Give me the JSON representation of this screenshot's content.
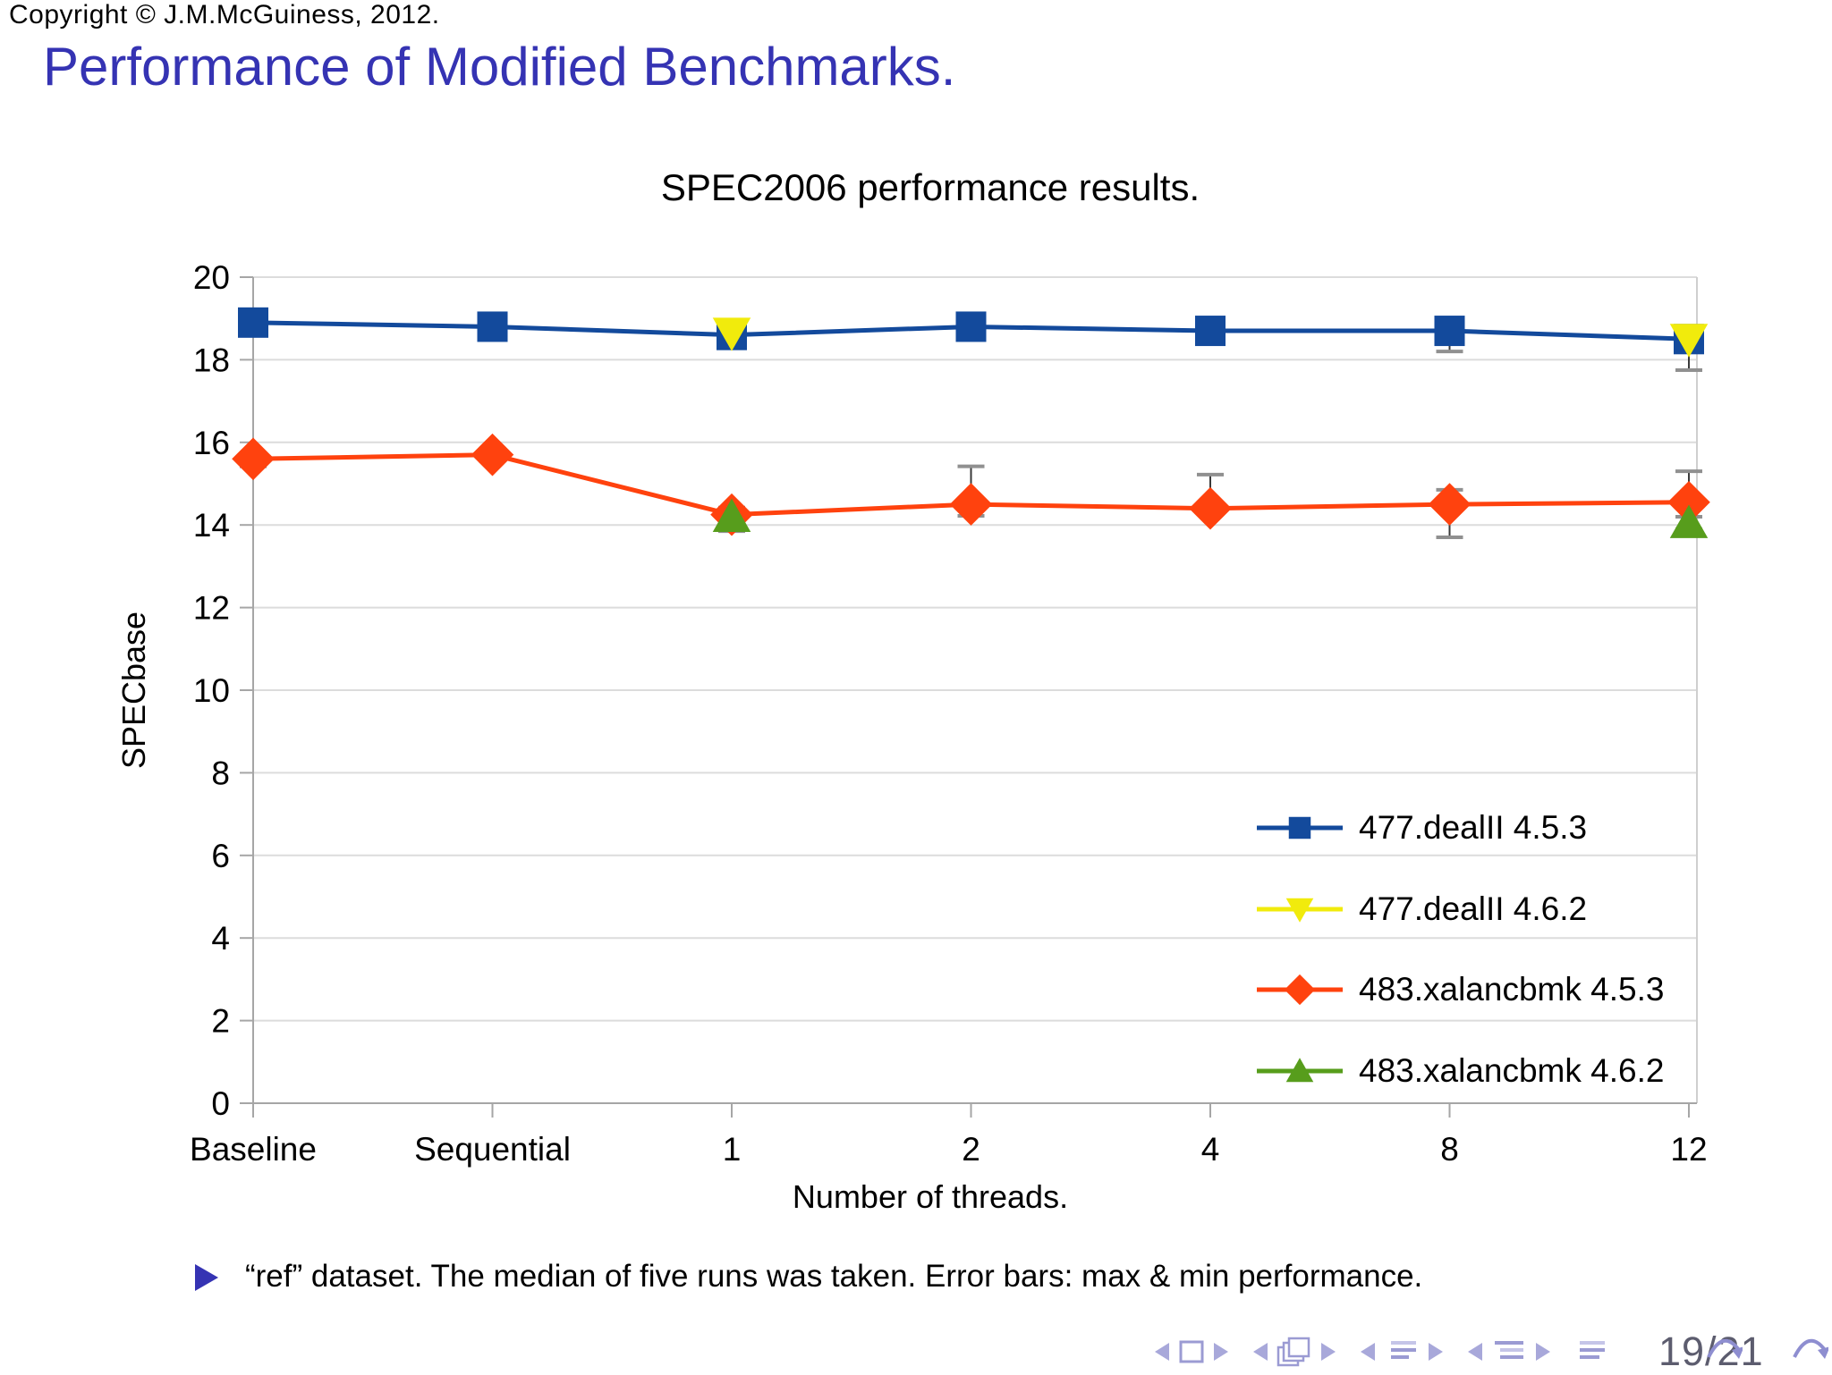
{
  "slide": {
    "copyright": "Copyright © J.M.McGuiness, 2012.",
    "title": "Performance of Modified Benchmarks.",
    "note": "“ref” dataset. The median of five runs was taken. Error bars: max & min performance.",
    "accent_color": "#3533b3"
  },
  "chart_data": {
    "type": "line",
    "title": "SPEC2006 performance results.",
    "xlabel": "Number of threads.",
    "ylabel": "SPECbase",
    "categories": [
      "Baseline",
      "Sequential",
      "1",
      "2",
      "4",
      "8",
      "12"
    ],
    "ylim": [
      0,
      20
    ],
    "ytick_step": 2,
    "grid": true,
    "legend_position": "right-middle-inside",
    "series": [
      {
        "name": "477.dealII 4.5.3",
        "color": "#134a9c",
        "marker": "square",
        "line": true,
        "values": [
          18.9,
          18.8,
          18.6,
          18.8,
          18.7,
          18.7,
          18.5
        ],
        "err_low": [
          18.78,
          18.68,
          18.35,
          18.62,
          18.55,
          18.2,
          17.75
        ],
        "err_high": [
          19.02,
          18.9,
          18.72,
          18.9,
          18.8,
          18.78,
          18.62
        ]
      },
      {
        "name": "477.dealII 4.6.2",
        "color": "#f1eb0c",
        "marker": "triangle-down",
        "line": false,
        "values": [
          null,
          null,
          18.65,
          null,
          null,
          null,
          18.5
        ],
        "err_low": [
          null,
          null,
          null,
          null,
          null,
          null,
          null
        ],
        "err_high": [
          null,
          null,
          null,
          null,
          null,
          null,
          null
        ]
      },
      {
        "name": "483.xalancbmk 4.5.3",
        "color": "#ff420e",
        "marker": "diamond",
        "line": true,
        "values": [
          15.6,
          15.7,
          14.25,
          14.5,
          14.4,
          14.5,
          14.55
        ],
        "err_low": [
          15.42,
          15.55,
          13.95,
          14.22,
          14.3,
          13.7,
          14.2
        ],
        "err_high": [
          15.72,
          15.85,
          14.42,
          15.42,
          15.22,
          14.85,
          15.3
        ]
      },
      {
        "name": "483.xalancbmk 4.6.2",
        "color": "#579d1c",
        "marker": "triangle-up",
        "line": false,
        "values": [
          null,
          null,
          14.2,
          null,
          null,
          null,
          14.05
        ],
        "err_low": [
          null,
          null,
          13.85,
          null,
          null,
          null,
          13.9
        ],
        "err_high": [
          null,
          null,
          14.4,
          null,
          null,
          null,
          14.2
        ]
      }
    ],
    "style": {
      "gridline_color": "#dcdcdc",
      "axis_color": "#a6a6a6",
      "plot_border_color": "#cfcfcf",
      "error_line_color": "#3a3a3a",
      "error_cap_color": "#909090"
    }
  },
  "footer": {
    "page_indicator": "19/21",
    "nav_color": "#a0a0d8",
    "nav_icons": [
      "prev-slide-icon",
      "slide-icon",
      "next-slide-icon",
      "prev-frame-icon",
      "frames-icon",
      "next-frame-icon",
      "prev-subsection-icon",
      "subsection-lines-icon",
      "next-subsection-icon",
      "prev-section-icon",
      "section-lines-icon",
      "next-section-icon",
      "appendix-lines-icon",
      "jump-back-icon",
      "jump-forward-icon"
    ]
  }
}
